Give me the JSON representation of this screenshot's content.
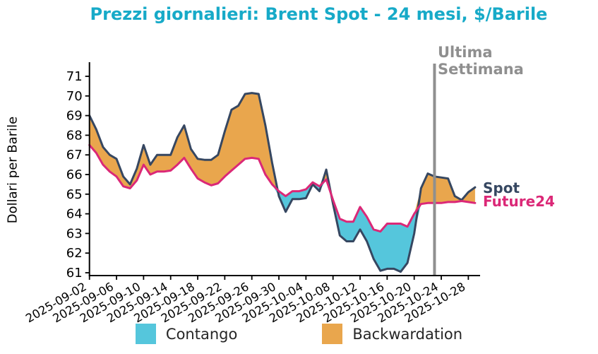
{
  "title": "Prezzi giornalieri: Brent Spot - 24 mesi, $/Barile",
  "colors": {
    "title": "#17AAC8",
    "spot_line": "#364761",
    "future_line": "#DB2877",
    "contango_fill": "#55C6DC",
    "backwardation_fill": "#E9A64D",
    "vline_gray": "#8F8F8F",
    "axis": "#000000",
    "legend_text": "#262626"
  },
  "annotations": {
    "vline_label_line1": "Ultima",
    "vline_label_line2": "Settimana",
    "vline_date": "2025-10-23",
    "spot_end_label": "Spot",
    "future_end_label": "Future24"
  },
  "legend": [
    {
      "label": "Contango",
      "color": "#55C6DC"
    },
    {
      "label": "Backwardation",
      "color": "#E9A64D"
    }
  ],
  "chart_data": {
    "type": "line",
    "title": "Prezzi giornalieri: Brent Spot - 24 mesi, $/Barile",
    "xlabel": "",
    "ylabel": "Dollari per Barile",
    "ylim": [
      60.9,
      71.6
    ],
    "grid": false,
    "y_ticks": [
      61,
      62,
      63,
      64,
      65,
      66,
      67,
      68,
      69,
      70,
      71
    ],
    "x_ticklabels": [
      "2025-09-02",
      "2025-09-06",
      "2025-09-10",
      "2025-09-14",
      "2025-09-18",
      "2025-09-22",
      "2025-09-26",
      "2025-09-30",
      "2025-10-04",
      "2025-10-08",
      "2025-10-12",
      "2025-10-16",
      "2025-10-20",
      "2025-10-24",
      "2025-10-28"
    ],
    "x": [
      "2025-09-02",
      "2025-09-03",
      "2025-09-04",
      "2025-09-05",
      "2025-09-06",
      "2025-09-07",
      "2025-09-08",
      "2025-09-09",
      "2025-09-10",
      "2025-09-11",
      "2025-09-12",
      "2025-09-13",
      "2025-09-14",
      "2025-09-15",
      "2025-09-16",
      "2025-09-17",
      "2025-09-18",
      "2025-09-19",
      "2025-09-20",
      "2025-09-21",
      "2025-09-22",
      "2025-09-23",
      "2025-09-24",
      "2025-09-25",
      "2025-09-26",
      "2025-09-27",
      "2025-09-28",
      "2025-09-29",
      "2025-09-30",
      "2025-10-01",
      "2025-10-02",
      "2025-10-03",
      "2025-10-04",
      "2025-10-05",
      "2025-10-06",
      "2025-10-07",
      "2025-10-08",
      "2025-10-09",
      "2025-10-10",
      "2025-10-11",
      "2025-10-12",
      "2025-10-13",
      "2025-10-14",
      "2025-10-15",
      "2025-10-16",
      "2025-10-17",
      "2025-10-18",
      "2025-10-19",
      "2025-10-20",
      "2025-10-21",
      "2025-10-22",
      "2025-10-23",
      "2025-10-24",
      "2025-10-25",
      "2025-10-26",
      "2025-10-27",
      "2025-10-28",
      "2025-10-29"
    ],
    "series": [
      {
        "name": "Spot",
        "color": "#364761",
        "values": [
          69.0,
          68.3,
          67.4,
          67.0,
          66.8,
          65.9,
          65.5,
          66.3,
          67.5,
          66.5,
          67.0,
          67.0,
          67.0,
          67.9,
          68.5,
          67.3,
          66.8,
          66.75,
          66.75,
          67.0,
          68.2,
          69.3,
          69.5,
          70.1,
          70.15,
          70.1,
          68.5,
          66.6,
          64.9,
          64.1,
          64.75,
          64.75,
          64.8,
          65.5,
          65.15,
          66.25,
          64.5,
          62.9,
          62.6,
          62.6,
          63.2,
          62.6,
          61.7,
          61.1,
          61.2,
          61.2,
          61.05,
          61.5,
          63.0,
          65.3,
          66.05,
          65.9,
          65.85,
          65.8,
          64.9,
          64.7,
          65.1,
          65.35
        ]
      },
      {
        "name": "Future24",
        "color": "#DB2877",
        "values": [
          67.5,
          67.1,
          66.5,
          66.15,
          65.9,
          65.4,
          65.3,
          65.7,
          66.5,
          66.0,
          66.15,
          66.15,
          66.2,
          66.5,
          66.85,
          66.3,
          65.8,
          65.6,
          65.45,
          65.55,
          65.9,
          66.2,
          66.5,
          66.8,
          66.85,
          66.8,
          66.0,
          65.5,
          65.15,
          64.9,
          65.15,
          65.15,
          65.25,
          65.6,
          65.4,
          65.75,
          64.7,
          63.75,
          63.6,
          63.6,
          64.35,
          63.85,
          63.2,
          63.1,
          63.5,
          63.5,
          63.5,
          63.35,
          64.0,
          64.5,
          64.55,
          64.55,
          64.55,
          64.6,
          64.6,
          64.65,
          64.6,
          64.55
        ]
      }
    ],
    "fills": [
      {
        "name": "Contango",
        "color": "#55C6DC",
        "condition": "Future24 > Spot"
      },
      {
        "name": "Backwardation",
        "color": "#E9A64D",
        "condition": "Spot > Future24"
      }
    ],
    "vline": {
      "x": "2025-10-23",
      "label": "Ultima Settimana",
      "color": "#8F8F8F"
    },
    "legend_position": "bottom"
  }
}
